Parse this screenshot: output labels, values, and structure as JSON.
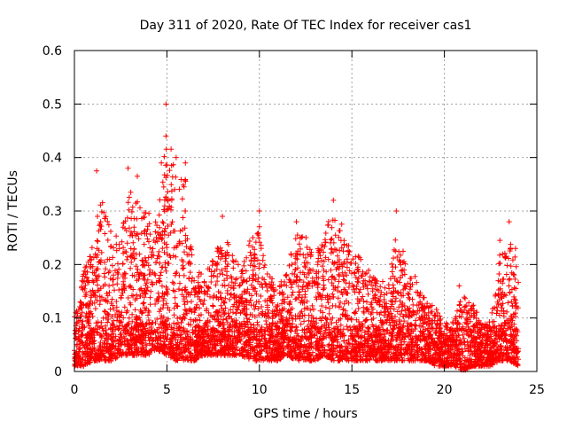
{
  "chart_data": {
    "type": "scatter",
    "title": "Day 311 of 2020, Rate Of TEC Index for receiver cas1",
    "xlabel": "GPS time / hours",
    "ylabel": "ROTI / TECUs",
    "xlim": [
      0,
      25
    ],
    "ylim": [
      0,
      0.6
    ],
    "xticks": [
      0,
      5,
      10,
      15,
      20,
      25
    ],
    "yticks": [
      0,
      0.1,
      0.2,
      0.3,
      0.4,
      0.5,
      0.6
    ],
    "xtick_labels": [
      "0",
      "5",
      "10",
      "15",
      "20",
      "25"
    ],
    "ytick_labels": [
      "0",
      "0.1",
      "0.2",
      "0.3",
      "0.4",
      "0.5",
      "0.6"
    ],
    "grid": true,
    "marker": "+",
    "color": "#ff0000",
    "envelope": {
      "x": [
        0,
        0.5,
        1,
        1.5,
        2,
        2.5,
        3,
        3.5,
        4,
        4.5,
        5,
        5.5,
        6,
        6.5,
        7,
        7.5,
        8,
        8.5,
        9,
        9.5,
        10,
        10.5,
        11,
        11.5,
        12,
        12.5,
        13,
        13.5,
        14,
        14.5,
        15,
        15.5,
        16,
        16.5,
        17,
        17.5,
        18,
        18.5,
        19,
        19.5,
        20,
        20.5,
        21,
        21.5,
        22,
        22.5,
        23,
        23.5,
        24
      ],
      "upper": [
        0.12,
        0.2,
        0.26,
        0.37,
        0.28,
        0.27,
        0.37,
        0.34,
        0.32,
        0.3,
        0.5,
        0.4,
        0.39,
        0.2,
        0.2,
        0.23,
        0.29,
        0.24,
        0.22,
        0.27,
        0.3,
        0.2,
        0.17,
        0.21,
        0.28,
        0.28,
        0.22,
        0.3,
        0.31,
        0.3,
        0.24,
        0.23,
        0.2,
        0.18,
        0.19,
        0.3,
        0.2,
        0.19,
        0.14,
        0.13,
        0.1,
        0.1,
        0.16,
        0.14,
        0.1,
        0.1,
        0.24,
        0.28,
        0.24
      ],
      "lower": [
        0.01,
        0.01,
        0.02,
        0.02,
        0.02,
        0.03,
        0.03,
        0.03,
        0.03,
        0.04,
        0.03,
        0.02,
        0.02,
        0.02,
        0.03,
        0.03,
        0.03,
        0.03,
        0.03,
        0.02,
        0.02,
        0.02,
        0.02,
        0.03,
        0.02,
        0.02,
        0.02,
        0.03,
        0.02,
        0.02,
        0.02,
        0.02,
        0.02,
        0.02,
        0.02,
        0.02,
        0.02,
        0.02,
        0.02,
        0.01,
        0.01,
        0.01,
        0.0,
        0.01,
        0.01,
        0.01,
        0.02,
        0.02,
        0.01
      ]
    },
    "peaks": [
      {
        "x": 4.95,
        "y": 0.5
      },
      {
        "x": 4.95,
        "y": 0.44
      },
      {
        "x": 5.5,
        "y": 0.4
      },
      {
        "x": 4.7,
        "y": 0.39
      },
      {
        "x": 6.0,
        "y": 0.39
      },
      {
        "x": 2.9,
        "y": 0.38
      },
      {
        "x": 1.2,
        "y": 0.375
      },
      {
        "x": 3.4,
        "y": 0.365
      },
      {
        "x": 14.0,
        "y": 0.32
      },
      {
        "x": 17.4,
        "y": 0.3
      },
      {
        "x": 10.0,
        "y": 0.3
      },
      {
        "x": 8.0,
        "y": 0.29
      },
      {
        "x": 12.0,
        "y": 0.28
      },
      {
        "x": 23.5,
        "y": 0.28
      },
      {
        "x": 23.0,
        "y": 0.245
      },
      {
        "x": 20.8,
        "y": 0.16
      }
    ]
  }
}
